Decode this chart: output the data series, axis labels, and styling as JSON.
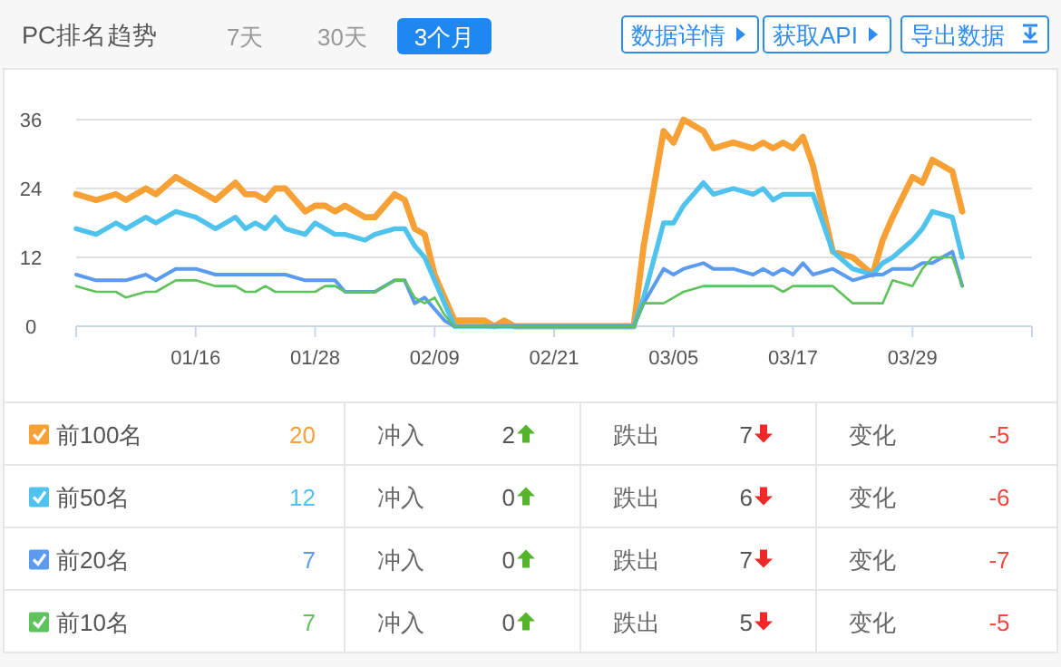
{
  "chart_data": {
    "type": "line",
    "title": "PC排名趋势",
    "x": [
      "--01-04",
      "--01-06",
      "--01-08",
      "--01-09",
      "--01-11",
      "--01-12",
      "--01-14",
      "--01-16",
      "--01-18",
      "--01-20",
      "--01-21",
      "--01-22",
      "--01-23",
      "--01-24",
      "--01-25",
      "--01-27",
      "--01-28",
      "--01-29",
      "--01-30",
      "--01-31",
      "--02-02",
      "--02-03",
      "--02-05",
      "--02-06",
      "--02-07",
      "--02-08",
      "--02-09",
      "--02-10",
      "--02-11",
      "--02-14",
      "--02-15",
      "--02-16",
      "--02-17",
      "--02-23",
      "--03-01",
      "--03-02",
      "--03-04",
      "--03-05",
      "--03-06",
      "--03-08",
      "--03-09",
      "--03-11",
      "--03-13",
      "--03-14",
      "--03-15",
      "--03-16",
      "--03-17",
      "--03-18",
      "--03-19",
      "--03-21",
      "--03-23",
      "--03-25",
      "--03-26",
      "--03-27",
      "--03-29",
      "--03-30",
      "--03-31",
      "--04-02",
      "--04-03"
    ],
    "series": [
      {
        "name": "前100名",
        "color": "#f7a035",
        "values": [
          23,
          22,
          23,
          22,
          24,
          23,
          26,
          24,
          22,
          25,
          23,
          23,
          22,
          24,
          24,
          20,
          21,
          21,
          20,
          21,
          19,
          19,
          23,
          22,
          17,
          16,
          9,
          5,
          1,
          1,
          0,
          1,
          0,
          0,
          0,
          14,
          34,
          32,
          36,
          34,
          31,
          32,
          31,
          32,
          31,
          32,
          31,
          33,
          28,
          13,
          12,
          9,
          15,
          19,
          26,
          25,
          29,
          27,
          20
        ]
      },
      {
        "name": "前50名",
        "color": "#4fc3ed",
        "values": [
          17,
          16,
          18,
          17,
          19,
          18,
          20,
          19,
          17,
          19,
          17,
          18,
          17,
          19,
          17,
          16,
          18,
          17,
          16,
          16,
          15,
          16,
          17,
          17,
          14,
          12,
          8,
          4,
          0,
          0,
          0,
          0,
          0,
          0,
          0,
          5,
          18,
          18,
          21,
          25,
          23,
          24,
          23,
          24,
          22,
          23,
          23,
          23,
          23,
          13,
          10,
          9,
          11,
          12,
          15,
          17,
          20,
          19,
          12
        ]
      },
      {
        "name": "前20名",
        "color": "#5b9bef",
        "values": [
          9,
          8,
          8,
          8,
          9,
          8,
          10,
          10,
          9,
          9,
          9,
          9,
          9,
          9,
          9,
          8,
          8,
          8,
          8,
          6,
          6,
          6,
          8,
          8,
          4,
          5,
          3,
          1,
          0,
          0,
          0,
          0,
          0,
          0,
          0,
          4,
          10,
          9,
          10,
          11,
          10,
          10,
          9,
          10,
          9,
          10,
          9,
          11,
          9,
          10,
          8,
          9,
          9,
          10,
          10,
          11,
          11,
          13,
          7
        ]
      },
      {
        "name": "前10名",
        "color": "#5ec35a",
        "values": [
          7,
          6,
          6,
          5,
          6,
          6,
          8,
          8,
          7,
          7,
          6,
          6,
          7,
          6,
          6,
          6,
          6,
          7,
          7,
          6,
          6,
          6,
          8,
          8,
          5,
          4,
          5,
          2,
          0,
          0,
          0,
          0,
          0,
          0,
          0,
          4,
          4,
          5,
          6,
          7,
          7,
          7,
          7,
          7,
          7,
          6,
          7,
          7,
          7,
          7,
          4,
          4,
          4,
          8,
          7,
          10,
          12,
          12,
          7
        ]
      }
    ],
    "xlim": [
      "--01-04",
      "--04-10"
    ],
    "xticks": [
      {
        "value": "--01-04",
        "label": null
      },
      {
        "value": "--01-16",
        "label": "01/16"
      },
      {
        "value": "--01-28",
        "label": "01/28"
      },
      {
        "value": "--02-09",
        "label": "02/09"
      },
      {
        "value": "--02-21",
        "label": "02/21"
      },
      {
        "value": "--03-05",
        "label": "03/05"
      },
      {
        "value": "--03-17",
        "label": "03/17"
      },
      {
        "value": "--03-29",
        "label": "03/29"
      },
      {
        "value": "--04-10",
        "label": null
      }
    ],
    "ylim": [
      0,
      36
    ],
    "yticks": [
      0,
      12,
      24,
      36
    ],
    "grid": "y",
    "legend": "bottom",
    "annotations": [
      "7天",
      "30天",
      "3个月",
      "数据详情",
      "获取API",
      "导出数据",
      "20",
      "冲入",
      "2",
      "跌出",
      "7",
      "变化",
      "-5",
      "12",
      "冲入",
      "0",
      "跌出",
      "6",
      "变化",
      "-6",
      "7",
      "冲入",
      "0",
      "跌出",
      "7",
      "变化",
      "-7",
      "7",
      "冲入",
      "0",
      "跌出",
      "5",
      "变化",
      "-5"
    ]
  }
}
